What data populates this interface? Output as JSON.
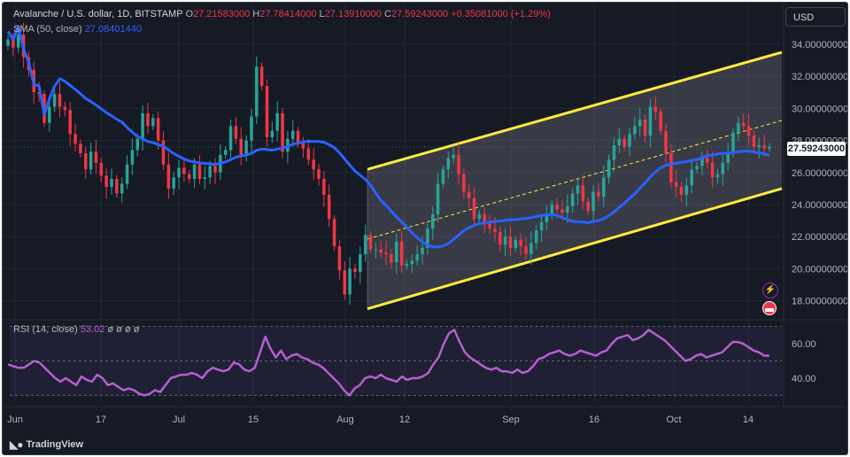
{
  "legend": {
    "symbol": "Avalanche / U.S. dollar, 1D, BITSTAMP",
    "o_label": "O",
    "o_value": "27.21583000",
    "h_label": "H",
    "h_value": "27.78414000",
    "l_label": "L",
    "l_value": "27.13910000",
    "c_label": "C",
    "c_value": "27.59243000",
    "change": "+0.35081000 (+1.29%)",
    "sma_label": "SMA (50, close)",
    "sma_value": "27.08401440",
    "rsi_label": "RSI (14, close)",
    "rsi_value": "53.02",
    "rsi_extra": "ø ø ø ø"
  },
  "currency_button": "USD",
  "last_price": "27.59243000",
  "branding": "TradingView",
  "icons": [
    "alert-lightning-icon",
    "us-flag-icon",
    "tradingview-logo-icon"
  ],
  "colors": {
    "up": "#26a69a",
    "down": "#f23645",
    "sma": "#2962ff",
    "channel": "#ffeb3b",
    "rsi": "#b65fce",
    "background": "#161a25"
  },
  "chart_data": [
    {
      "type": "candlestick",
      "title": "Avalanche / U.S. dollar, 1D, BITSTAMP",
      "x_ticks": [
        "Jun",
        "17",
        "Jul",
        "15",
        "Aug",
        "12",
        "Sep",
        "16",
        "Oct",
        "14"
      ],
      "y_ticks": [
        "34.00000000",
        "32.00000000",
        "30.00000000",
        "28.00000000",
        "26.00000000",
        "24.00000000",
        "22.00000000",
        "20.00000000",
        "18.00000000"
      ],
      "ylim": [
        17,
        35
      ],
      "grid": true,
      "last_value": 27.59243,
      "close_values": [
        34.3,
        33.8,
        34.6,
        33.2,
        32.4,
        31.0,
        30.9,
        29.1,
        30.1,
        30.9,
        30.1,
        29.9,
        28.4,
        27.8,
        27.2,
        26.2,
        27.3,
        26.6,
        25.8,
        25.1,
        25.6,
        24.7,
        25.3,
        26.5,
        27.4,
        28.1,
        29.7,
        28.9,
        29.4,
        28.0,
        26.5,
        25.0,
        25.7,
        26.3,
        25.9,
        25.6,
        26.5,
        25.6,
        25.7,
        26.4,
        26.0,
        27.1,
        27.4,
        28.9,
        28.1,
        27.1,
        28.0,
        29.5,
        32.6,
        31.4,
        28.2,
        28.6,
        29.7,
        27.3,
        28.1,
        28.6,
        27.8,
        27.5,
        26.8,
        26.2,
        25.6,
        24.6,
        23.1,
        21.4,
        19.9,
        18.4,
        20.0,
        19.8,
        20.9,
        22.1,
        21.2,
        21.2,
        21.0,
        20.9,
        20.4,
        21.7,
        20.2,
        20.3,
        20.5,
        20.9,
        21.3,
        22.5,
        23.4,
        25.3,
        26.2,
        26.9,
        27.1,
        25.9,
        24.8,
        24.4,
        23.1,
        23.4,
        22.8,
        22.5,
        22.3,
        21.5,
        22.0,
        21.3,
        21.8,
        21.4,
        20.9,
        21.6,
        22.4,
        22.9,
        23.3,
        24.0,
        23.7,
        23.5,
        23.9,
        24.7,
        25.2,
        24.2,
        23.6,
        24.8,
        24.5,
        25.7,
        26.8,
        27.7,
        28.1,
        27.6,
        28.4,
        28.9,
        29.3,
        28.3,
        30.1,
        29.8,
        28.6,
        27.2,
        25.4,
        25.1,
        24.6,
        25.2,
        26.2,
        26.4,
        26.9,
        26.6,
        25.7,
        25.9,
        26.6,
        27.2,
        28.5,
        29.1,
        28.9,
        28.3,
        27.6,
        27.7,
        27.5,
        27.59
      ],
      "channel": {
        "upper_start": 26.2,
        "upper_end": 33.5,
        "lower_start": 17.5,
        "lower_end": 25.0,
        "mid_start": 21.85,
        "mid_end": 29.25
      },
      "sma": {
        "name": "SMA (50, close)",
        "value": 27.0840144
      }
    },
    {
      "type": "line",
      "title": "RSI (14, close)",
      "y_ticks": [
        "60.00",
        "40.00"
      ],
      "bands": [
        70,
        50,
        30
      ],
      "series": [
        {
          "name": "RSI (14, close)",
          "values": [
            48,
            47,
            46,
            46,
            48,
            50,
            49,
            46,
            43,
            40,
            38,
            40,
            38,
            36,
            41,
            39,
            38,
            42,
            40,
            36,
            37,
            35,
            33,
            34,
            33,
            31,
            30,
            31,
            33,
            32,
            36,
            40,
            41,
            42,
            42,
            43,
            42,
            40,
            44,
            46,
            45,
            44,
            45,
            49,
            48,
            45,
            44,
            46,
            55,
            64,
            57,
            52,
            56,
            51,
            53,
            54,
            52,
            51,
            49,
            48,
            46,
            43,
            40,
            37,
            33,
            30,
            34,
            36,
            40,
            41,
            40,
            42,
            40,
            39,
            38,
            41,
            39,
            40,
            40,
            41,
            43,
            48,
            52,
            60,
            66,
            68,
            61,
            55,
            52,
            50,
            48,
            46,
            45,
            46,
            44,
            44,
            43,
            45,
            43,
            44,
            47,
            51,
            52,
            54,
            55,
            56,
            54,
            53,
            54,
            56,
            55,
            54,
            53,
            55,
            56,
            60,
            63,
            64,
            65,
            62,
            63,
            65,
            68,
            66,
            64,
            62,
            59,
            56,
            53,
            50,
            51,
            53,
            54,
            52,
            53,
            54,
            55,
            58,
            61,
            61,
            60,
            58,
            56,
            55,
            53,
            53.02
          ]
        }
      ],
      "last_value": 53.02
    }
  ]
}
